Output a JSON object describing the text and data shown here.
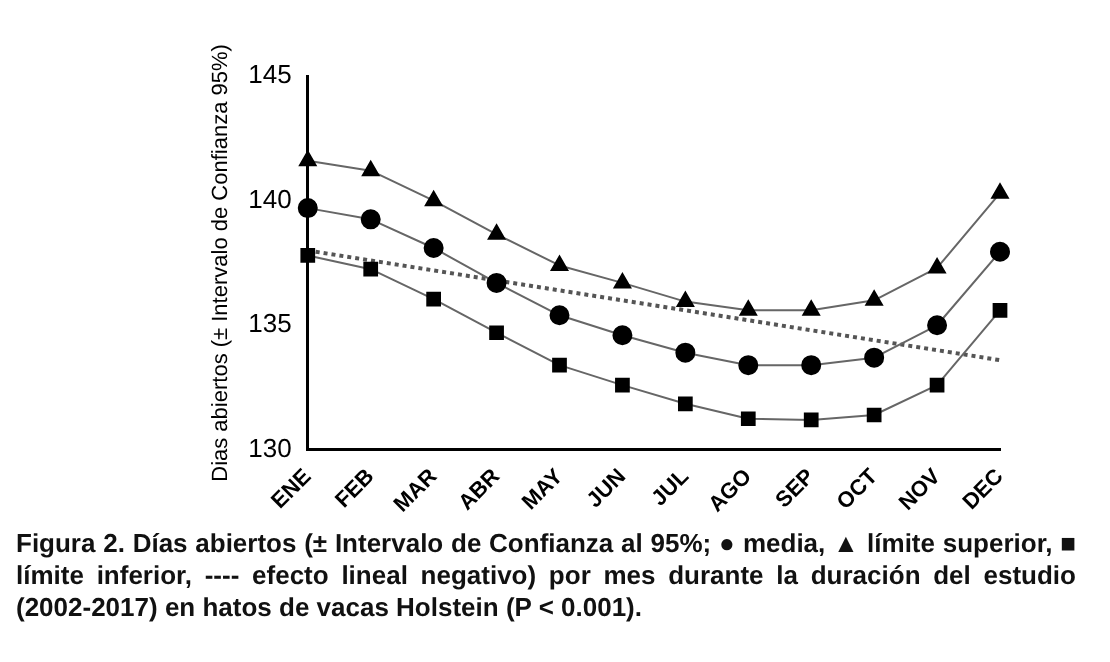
{
  "chart_data": {
    "type": "line",
    "ylabel": "Dias abiertos (± Intervalo de Confianza 95%)",
    "categories": [
      "ENE",
      "FEB",
      "MAR",
      "ABR",
      "MAY",
      "JUN",
      "JUL",
      "AGO",
      "SEP",
      "OCT",
      "NOV",
      "DEC"
    ],
    "series": [
      {
        "color": "#000000",
        "marker": "triangle",
        "values": [
          141.6,
          141.2,
          140.0,
          138.65,
          137.4,
          136.7,
          135.95,
          135.6,
          135.6,
          136.0,
          137.3,
          140.3
        ]
      },
      {
        "color": "#000000",
        "marker": "circle",
        "values": [
          139.7,
          139.25,
          138.1,
          136.7,
          135.4,
          134.6,
          133.9,
          133.4,
          133.4,
          133.7,
          135.0,
          137.95
        ]
      },
      {
        "color": "#000000",
        "marker": "square",
        "values": [
          137.8,
          137.25,
          136.05,
          134.7,
          133.4,
          132.6,
          131.85,
          131.25,
          131.2,
          131.4,
          132.6,
          135.6
        ]
      },
      {
        "type": "line",
        "color": "#555555",
        "marker": "none",
        "line_style": "dotted",
        "x": [
          "ENE",
          "DEC"
        ],
        "values": [
          138.0,
          133.6
        ]
      }
    ],
    "ylim": [
      130,
      145
    ],
    "yticks": [
      130,
      135,
      140,
      145
    ],
    "grid": false,
    "legend": false,
    "annotations": [
      "Figura 2. Días abiertos (± Intervalo de Confianza al 95%; ● media, ▲ límite superior, ■ límite inferior, ---- efecto lineal negativo) por mes durante la duración del estudio (2002-2017) en hatos de vacas Holstein (P < 0.001)."
    ]
  }
}
